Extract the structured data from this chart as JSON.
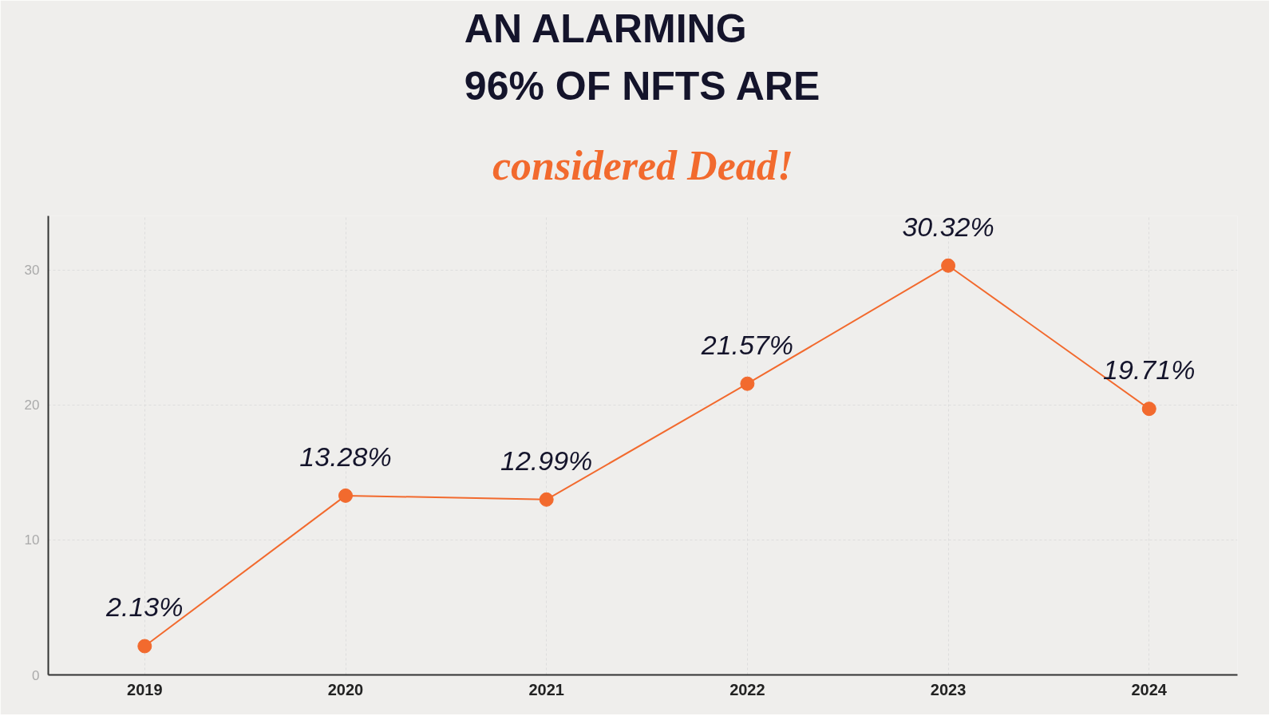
{
  "chart_data": {
    "type": "line",
    "title": "AN ALARMING\n96% OF NFTS ARE",
    "subtitle": "considered Dead!",
    "categories": [
      "2019",
      "2020",
      "2021",
      "2022",
      "2023",
      "2024"
    ],
    "series": [
      {
        "color": "#f26a2e",
        "values": [
          2.13,
          13.28,
          12.99,
          21.57,
          30.32,
          19.71
        ],
        "value_labels": [
          "2.13%",
          "13.28%",
          "12.99%",
          "21.57%",
          "30.32%",
          "19.71%"
        ]
      }
    ],
    "ylim": [
      0,
      34
    ],
    "yticks": [
      0,
      10,
      20,
      30
    ],
    "grid": true,
    "marker": "circle",
    "line_style": "solid"
  }
}
